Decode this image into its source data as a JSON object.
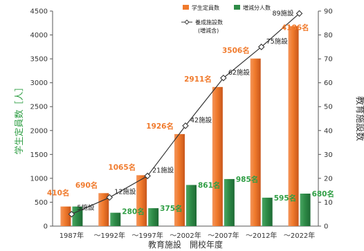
{
  "chart_data": {
    "type": "bar",
    "categories": [
      "1987年",
      "～1992年",
      "～1997年",
      "～2002年",
      "～2007年",
      "～2012年",
      "～2022年"
    ],
    "series": [
      {
        "name": "学生定員数",
        "axis": "left",
        "type": "bar",
        "color": "#f07a2c",
        "values": [
          410,
          690,
          1065,
          1926,
          2911,
          3506,
          4186
        ],
        "labels": [
          "410名",
          "690名",
          "1065名",
          "1926名",
          "2911名",
          "3506名",
          "4186名"
        ]
      },
      {
        "name": "増減分人数",
        "axis": "left",
        "type": "bar",
        "color": "#2e8b47",
        "values": [
          410,
          280,
          375,
          861,
          985,
          595,
          680
        ],
        "labels": [
          "",
          "280名",
          "375名",
          "861名",
          "985名",
          "595名",
          "680名"
        ]
      },
      {
        "name": "養成施設数",
        "name_sub": "(増減含)",
        "axis": "right",
        "type": "line",
        "color": "#333333",
        "values": [
          5,
          12,
          21,
          42,
          62,
          75,
          89
        ],
        "labels": [
          "5施設",
          "12施設",
          "21施設",
          "42施設",
          "62施設",
          "75施設",
          "89施設"
        ]
      }
    ],
    "xlabel": "教育施設　開校年度",
    "ylabel_left": "学生定員数［人］",
    "ylabel_right": "教育施設数",
    "ylim_left": [
      0,
      4500
    ],
    "yticks_left": [
      0,
      500,
      1000,
      1500,
      2000,
      2500,
      3000,
      3500,
      4000,
      4500
    ],
    "ylim_right": [
      0,
      90
    ],
    "yticks_right": [
      0,
      10,
      20,
      30,
      40,
      50,
      60,
      70,
      80,
      90
    ],
    "grid": false,
    "legend_position": "top-center"
  }
}
